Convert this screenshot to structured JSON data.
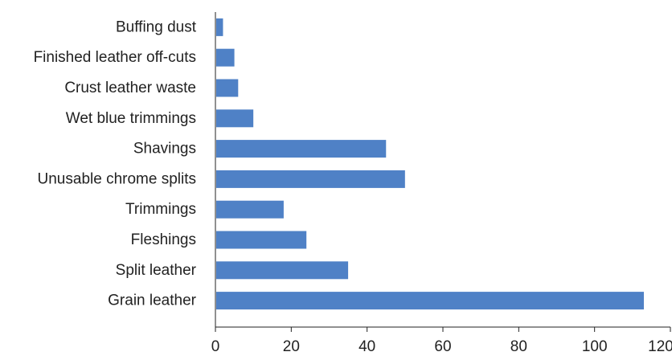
{
  "chart_data": {
    "type": "bar",
    "orientation": "horizontal",
    "categories": [
      "Buffing dust",
      "Finished leather off-cuts",
      "Crust leather waste",
      "Wet blue trimmings",
      "Shavings",
      "Unusable chrome splits",
      "Trimmings",
      "Fleshings",
      "Split leather",
      "Grain leather"
    ],
    "values": [
      2,
      5,
      6,
      10,
      45,
      50,
      18,
      24,
      35,
      113
    ],
    "xlim": [
      0,
      120
    ],
    "xticks": [
      0,
      20,
      40,
      60,
      80,
      100,
      120
    ],
    "bar_color": "#4F81C6",
    "axis_color": "#222222",
    "grid": false,
    "legend": "none"
  }
}
